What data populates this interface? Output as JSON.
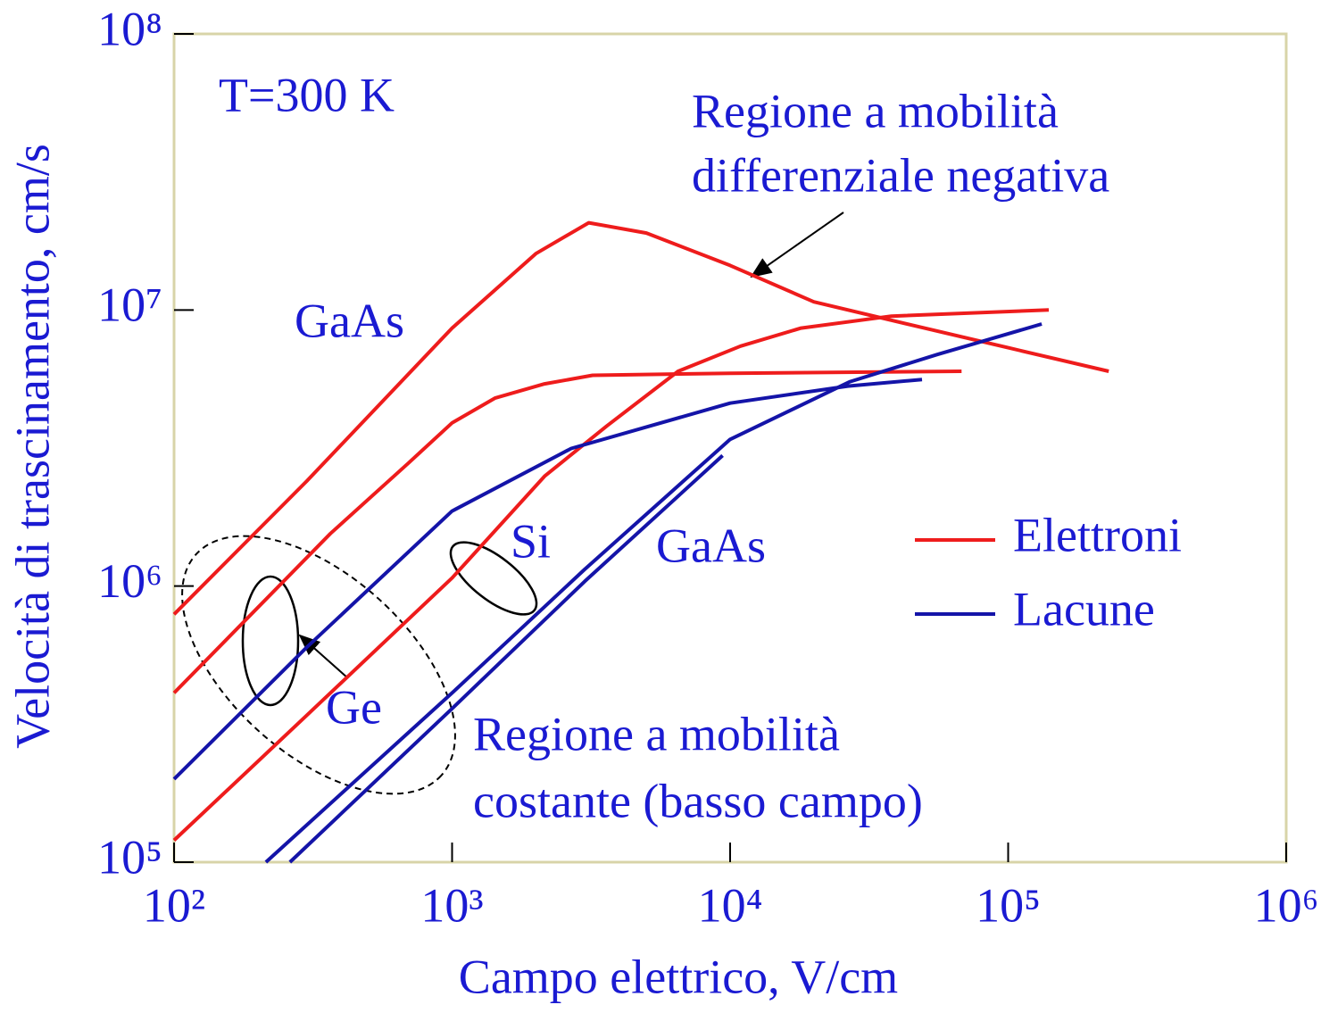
{
  "chart_data": {
    "type": "line",
    "x_label": "Campo elettrico, V/cm",
    "y_label": "Velocità di trascinamento, cm/s",
    "xlog": true,
    "ylog": true,
    "xlim": [
      100,
      1000000
    ],
    "ylim": [
      100000,
      100000000
    ],
    "xticks": [
      {
        "value": 100,
        "label": "10²"
      },
      {
        "value": 1000,
        "label": "10³"
      },
      {
        "value": 10000,
        "label": "10⁴"
      },
      {
        "value": 100000,
        "label": "10⁵"
      },
      {
        "value": 1000000,
        "label": "10⁶"
      }
    ],
    "yticks": [
      {
        "value": 100000,
        "label": "10⁵"
      },
      {
        "value": 1000000,
        "label": "10⁶"
      },
      {
        "value": 10000000,
        "label": "10⁷"
      },
      {
        "value": 100000000,
        "label": "10⁸"
      }
    ],
    "legend_position": "right",
    "series": [
      {
        "name": "Elettroni",
        "color": "#ee1c1c",
        "x": [
          100,
          300,
          1000,
          2000,
          3100,
          5000,
          10000,
          20000,
          50000,
          100000,
          230000
        ],
        "values": [
          790000,
          2400000,
          8600000,
          16000000,
          20700000,
          19000000,
          14500000,
          10700000,
          8600000,
          7300000,
          6000000
        ]
      },
      {
        "name": "Elettroni",
        "color": "#ee1c1c",
        "x": [
          100,
          365,
          700,
          1000,
          1430,
          2150,
          3200,
          10000,
          68000
        ],
        "values": [
          410000,
          1550000,
          2800000,
          3900000,
          4800000,
          5400000,
          5800000,
          5900000,
          6000000
        ]
      },
      {
        "name": "Elettroni",
        "color": "#ee1c1c",
        "x": [
          100,
          300,
          1000,
          2150,
          3600,
          6500,
          10900,
          18000,
          38000,
          140000
        ],
        "values": [
          120000,
          340000,
          1070000,
          2500000,
          3800000,
          6000000,
          7400000,
          8600000,
          9500000,
          10000000
        ]
      },
      {
        "name": "Lacune",
        "color": "#1414a8",
        "x": [
          100,
          300,
          1000,
          2680,
          10000,
          26500,
          49000
        ],
        "values": [
          200000,
          600000,
          1870000,
          3150000,
          4600000,
          5300000,
          5600000
        ]
      },
      {
        "name": "Lacune",
        "color": "#1414a8",
        "x": [
          214,
          1000,
          3000,
          10000,
          27000,
          55600,
          132000
        ],
        "values": [
          100000,
          410000,
          1150000,
          3400000,
          5500000,
          6900000,
          8900000
        ]
      },
      {
        "name": "Lacune",
        "color": "#1414a8",
        "x": [
          261,
          1000,
          3000,
          9400
        ],
        "values": [
          100000,
          360000,
          1040000,
          2970000
        ]
      }
    ],
    "legend": [
      {
        "name": "Elettroni",
        "color": "#ee1c1c"
      },
      {
        "name": "Lacune",
        "color": "#1414a8"
      }
    ],
    "annotations": [
      "T=300 K",
      "Regione a mobilità",
      "differenziale negativa",
      "GaAs",
      "Si",
      "GaAs",
      "Ge",
      "Regione a mobilità",
      "costante (basso campo)"
    ]
  }
}
